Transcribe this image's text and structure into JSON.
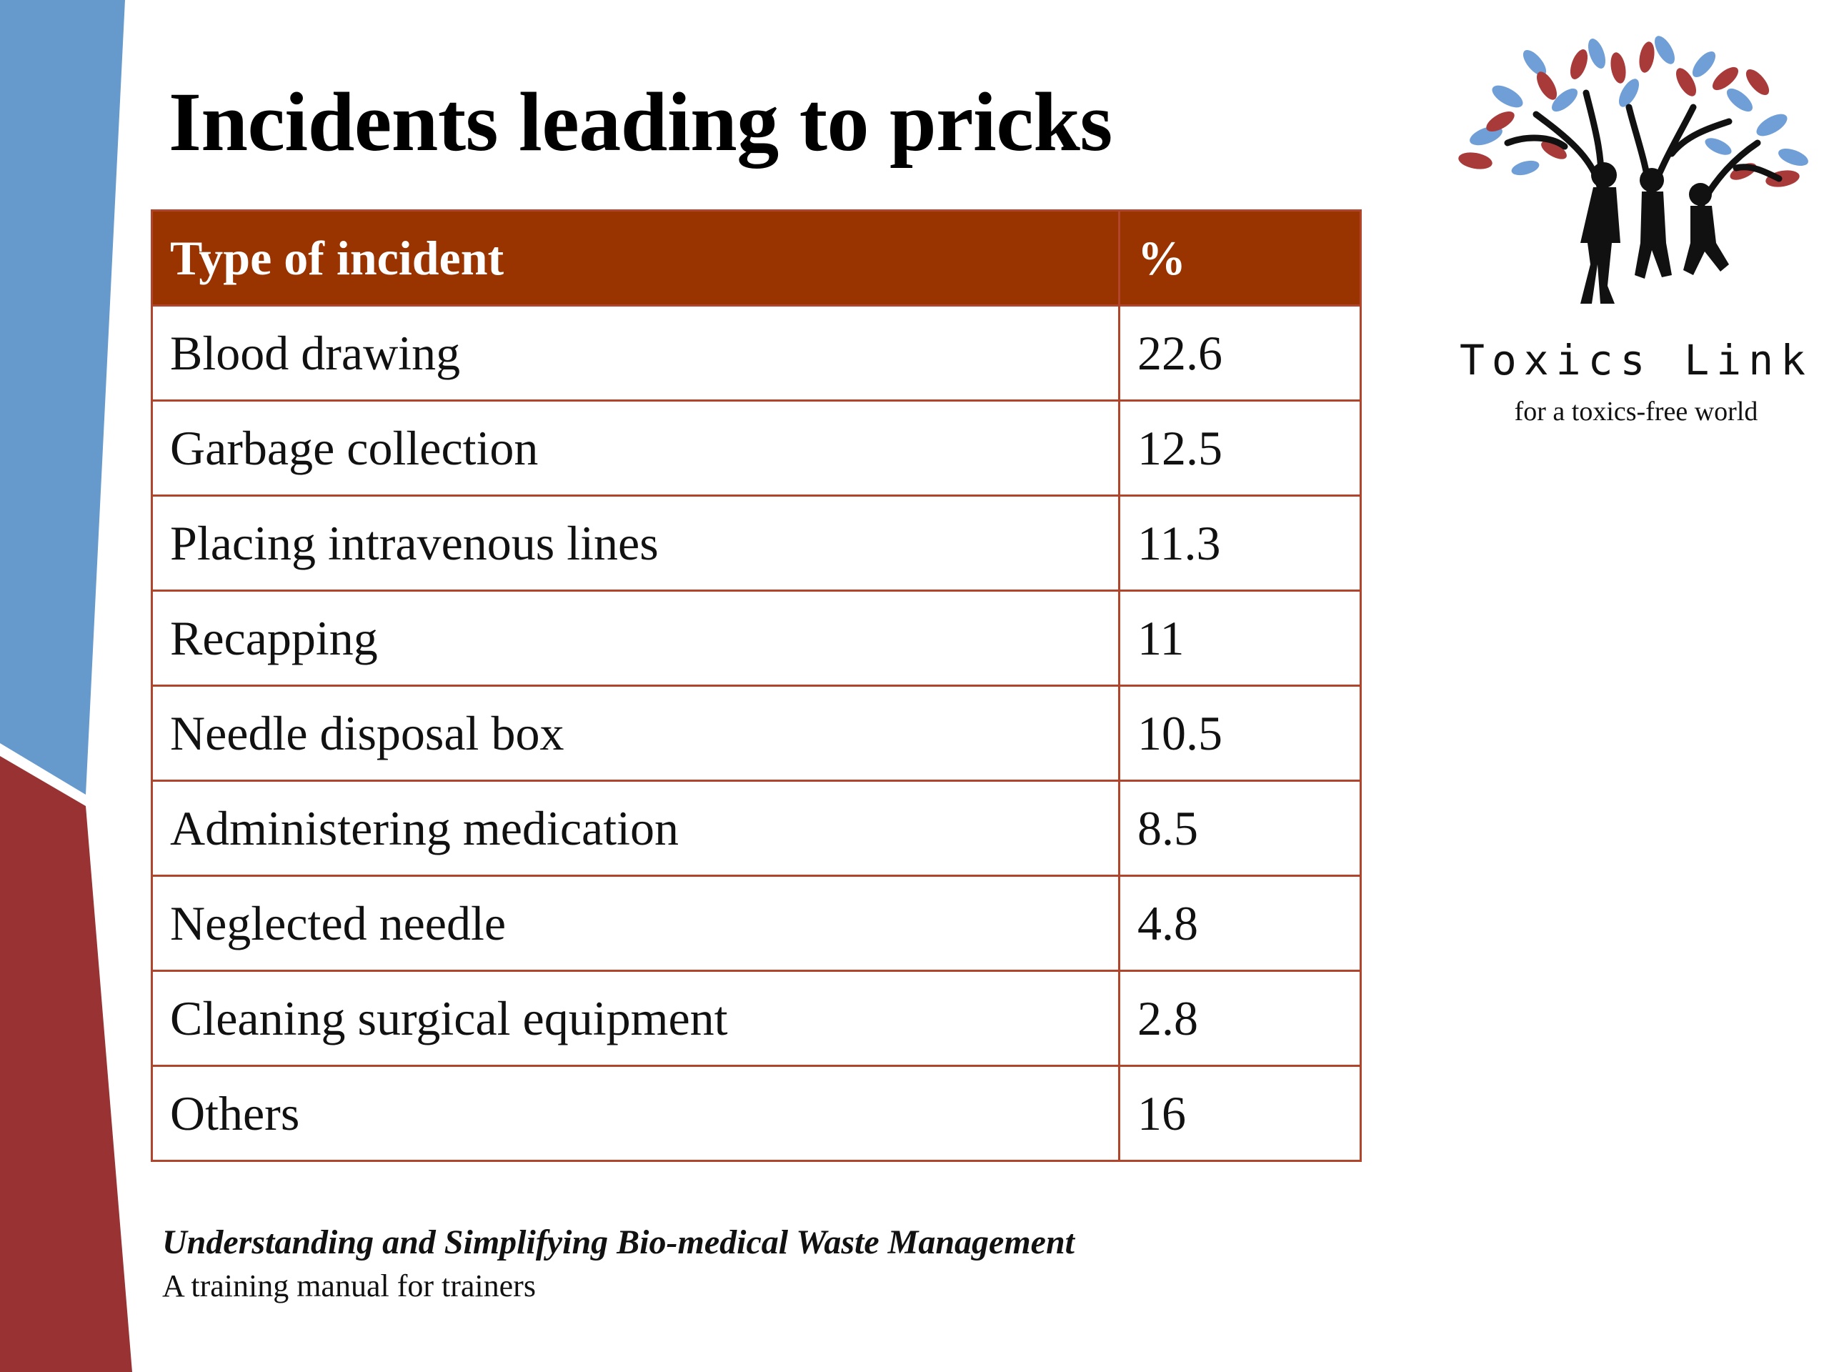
{
  "title": "Incidents leading to pricks",
  "table": {
    "headers": [
      "Type of incident",
      "%"
    ],
    "rows": [
      [
        "Blood drawing",
        "22.6"
      ],
      [
        "Garbage collection",
        "12.5"
      ],
      [
        "Placing intravenous lines",
        "11.3"
      ],
      [
        "Recapping",
        "11"
      ],
      [
        "Needle disposal box",
        "10.5"
      ],
      [
        "Administering medication",
        "8.5"
      ],
      [
        "Neglected needle",
        "4.8"
      ],
      [
        "Cleaning surgical equipment",
        "2.8"
      ],
      [
        "Others",
        "16"
      ]
    ]
  },
  "footer": {
    "book_title": "Understanding and Simplifying Bio-medical Waste Management",
    "subtitle": "A training manual for trainers"
  },
  "logo": {
    "name": "Toxics Link",
    "tagline": "for a toxics-free world",
    "icon": "tree-with-people-icon"
  },
  "colors": {
    "header_fill": "#993300",
    "cell_border": "#b0452c",
    "side_blue": "#6699cc",
    "side_red": "#993333"
  }
}
